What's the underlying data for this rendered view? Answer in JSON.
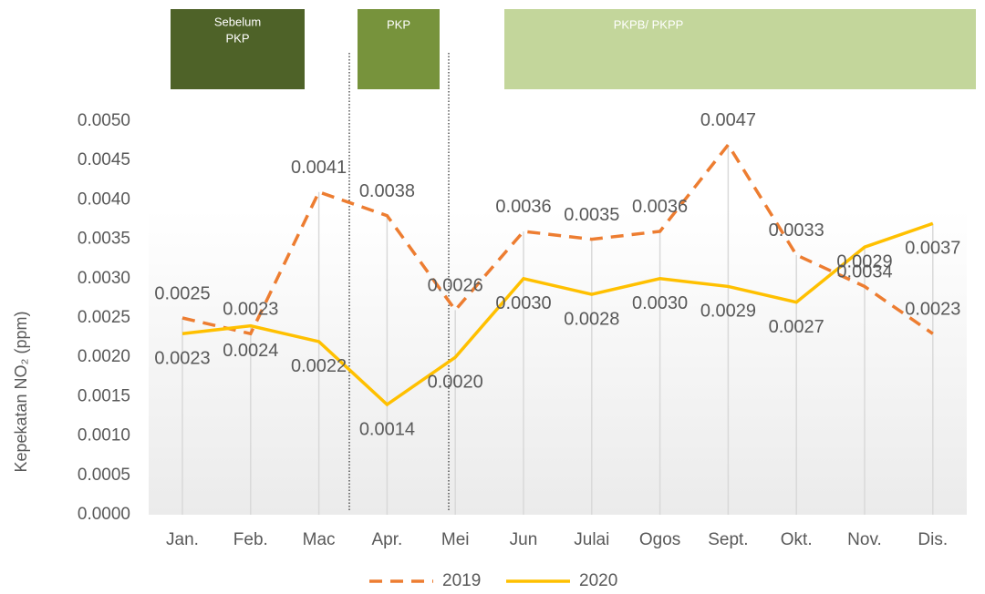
{
  "chart_data": {
    "type": "line",
    "y_label": "Kepekatan NO₂ (ppm)",
    "categories": [
      "Jan.",
      "Feb.",
      "Mac",
      "Apr.",
      "Mei",
      "Jun",
      "Julai",
      "Ogos",
      "Sept.",
      "Okt.",
      "Nov.",
      "Dis."
    ],
    "series": [
      {
        "name": "2019",
        "color": "#ED7D31",
        "dash": true,
        "values": [
          0.0025,
          0.0023,
          0.0041,
          0.0038,
          0.0026,
          0.0036,
          0.0035,
          0.0036,
          0.0047,
          0.0033,
          0.0029,
          0.0023
        ],
        "value_labels": [
          "0.0025",
          "0.0023",
          "0.0041",
          "0.0038",
          "0.0026",
          "0.0036",
          "0.0035",
          "0.0036",
          "0.0047",
          "0.0033",
          "0.0029",
          "0.0023"
        ]
      },
      {
        "name": "2020",
        "color": "#FFC000",
        "dash": false,
        "values": [
          0.0023,
          0.0024,
          0.0022,
          0.0014,
          0.002,
          0.003,
          0.0028,
          0.003,
          0.0029,
          0.0027,
          0.0034,
          0.0037
        ],
        "value_labels": [
          "0.0023",
          "0.0024",
          "0.0022",
          "0.0014",
          "0.0020",
          "0.0030",
          "0.0028",
          "0.0030",
          "0.0029",
          "0.0027",
          "0.0034",
          "0.0037"
        ]
      }
    ],
    "ylim": [
      0,
      0.005
    ],
    "yticks": [
      {
        "value": 0,
        "label": "0.0000"
      },
      {
        "value": 0.0005,
        "label": "0.0005"
      },
      {
        "value": 0.001,
        "label": "0.0010"
      },
      {
        "value": 0.0015,
        "label": "0.0015"
      },
      {
        "value": 0.002,
        "label": "0.0020"
      },
      {
        "value": 0.0025,
        "label": "0.0025"
      },
      {
        "value": 0.003,
        "label": "0.0030"
      },
      {
        "value": 0.0035,
        "label": "0.0035"
      },
      {
        "value": 0.004,
        "label": "0.0040"
      },
      {
        "value": 0.0045,
        "label": "0.0045"
      },
      {
        "value": 0.005,
        "label": "0.0050"
      }
    ],
    "annotations": [
      {
        "lines": [
          "Sebelum",
          "PKP"
        ]
      },
      {
        "lines": [
          "PKP"
        ]
      },
      {
        "lines": [
          "PKPB/ PKPP"
        ]
      }
    ]
  }
}
